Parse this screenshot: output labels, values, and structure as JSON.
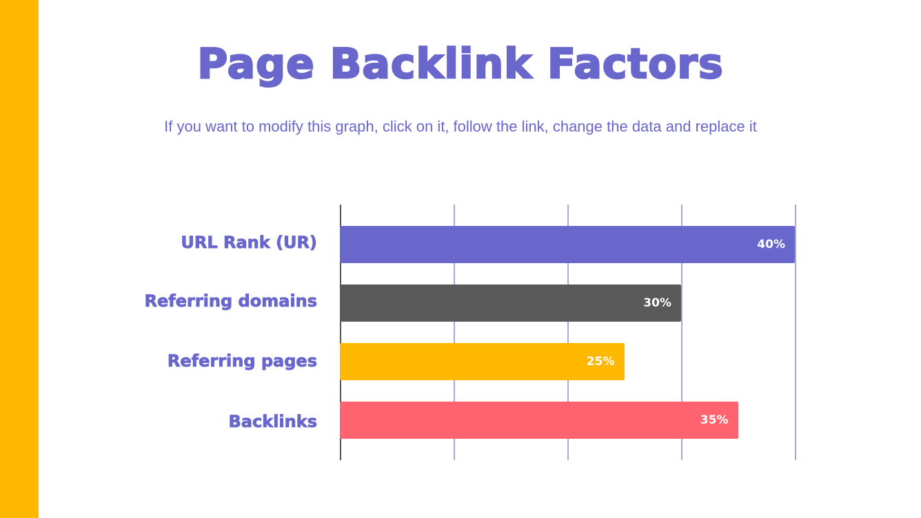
{
  "slide": {
    "title": "Page Backlink Factors",
    "subtitle": "If you want to modify this graph, click on it, follow the link, change the data and replace it",
    "accent_color": "#FFB800",
    "title_color": "#6966CC"
  },
  "chart_data": {
    "type": "bar",
    "orientation": "horizontal",
    "title": "Page Backlink Factors",
    "categories": [
      "URL Rank (UR)",
      "Referring domains",
      "Referring pages",
      "Backlinks"
    ],
    "values": [
      40,
      30,
      25,
      35
    ],
    "value_labels": [
      "40%",
      "30%",
      "25%",
      "35%"
    ],
    "colors": [
      "#6966CC",
      "#595959",
      "#FFB800",
      "#FF6370"
    ],
    "xlabel": "",
    "ylabel": "",
    "xlim": [
      0,
      40
    ],
    "unit": "%",
    "grid": true,
    "gridlines_at": [
      0,
      10,
      20,
      30,
      40
    ],
    "legend": null
  }
}
